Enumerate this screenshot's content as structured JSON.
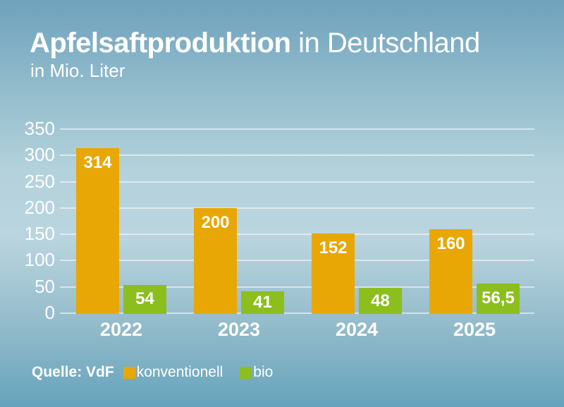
{
  "header": {
    "title_bold": "Apfelsaftproduktion",
    "title_rest": " in Deutschland",
    "subtitle": "in Mio. Liter"
  },
  "legend": {
    "source": "Quelle: VdF",
    "items": [
      {
        "label": "konventionell",
        "color": "#E8A705"
      },
      {
        "label": "bio",
        "color": "#8CBE1E"
      }
    ]
  },
  "colors": {
    "konventionell": "#E8A705",
    "bio": "#8CBE1E",
    "background_top": "#6FA2BD",
    "background_mid": "#BAD5DF",
    "background_bottom": "#6EA8BF",
    "text": "#FFFFFF",
    "gridline": "rgba(255,255,255,0.55)"
  },
  "chart_data": {
    "type": "bar",
    "title": "Apfelsaftproduktion in Deutschland",
    "subtitle": "in Mio. Liter",
    "categories": [
      "2022",
      "2023",
      "2024",
      "2025"
    ],
    "series": [
      {
        "name": "konventionell",
        "color": "#E8A705",
        "values": [
          314,
          200,
          152,
          160
        ],
        "labels": [
          "314",
          "200",
          "152",
          "160"
        ]
      },
      {
        "name": "bio",
        "color": "#8CBE1E",
        "values": [
          54,
          41,
          48,
          56.5
        ],
        "labels": [
          "54",
          "41",
          "48",
          "56,5"
        ]
      }
    ],
    "ylabel": "in Mio. Liter",
    "ylim": [
      0,
      350
    ],
    "yticks": [
      350,
      300,
      250,
      200,
      150,
      100,
      50,
      0
    ],
    "grid": true,
    "legend_position": "bottom",
    "source": "Quelle: VdF"
  }
}
